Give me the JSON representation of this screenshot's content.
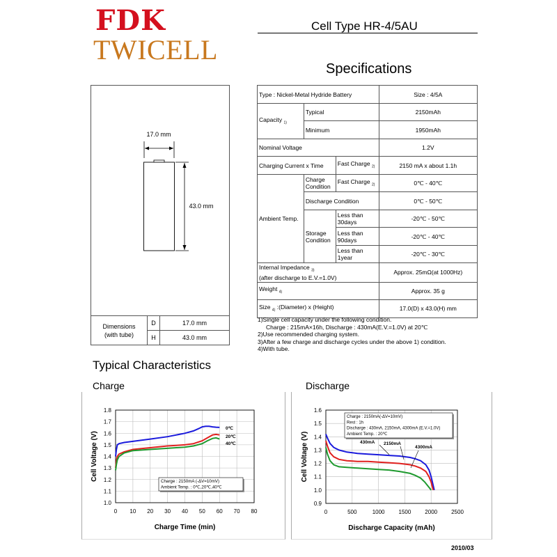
{
  "header": {
    "brand_top": "FDK",
    "brand_bottom": "TWICELL",
    "cell_type": "Cell Type HR-4/5AU",
    "spec_title": "Specifications"
  },
  "dimensions": {
    "width_label": "17.0 mm",
    "height_label": "43.0 mm",
    "table_label_line1": "Dimensions",
    "table_label_line2": "(with tube)",
    "rows": [
      {
        "key": "D",
        "value": "17.0 mm"
      },
      {
        "key": "H",
        "value": "43.0 mm"
      }
    ]
  },
  "spec": {
    "type": "Type : Nickel-Metal Hydride Battery",
    "size": "Size : 4/5A",
    "capacity": "Capacity",
    "capacity_note": "1)",
    "typical": "Typical",
    "typical_value": "2150mAh",
    "minimum": "Minimum",
    "minimum_value": "1950mAh",
    "nominal_voltage": "Nominal Voltage",
    "nominal_voltage_value": "1.2V",
    "charging": "Charging Current x Time",
    "fast_charge": "Fast Charge",
    "fast_charge_note": "2)",
    "charging_value": "2150 mA x about 1.1h",
    "ambient": "Ambient Temp.",
    "charge_condition_l1": "Charge",
    "charge_condition_l2": "Condition",
    "charge_temp": "0℃ - 40℃",
    "discharge_condition": "Discharge Condition",
    "discharge_temp": "0℃ - 50℃",
    "storage_l1": "Storage",
    "storage_l2": "Condition",
    "storage": [
      {
        "l1": "Less than",
        "l2": "30days",
        "value": "-20℃ - 50℃"
      },
      {
        "l1": "Less than",
        "l2": "90days",
        "value": "-20℃ - 40℃"
      },
      {
        "l1": "Less than",
        "l2": "1year",
        "value": "-20℃ - 30℃"
      }
    ],
    "impedance_l1": "Internal Impedance",
    "impedance_note": "3)",
    "impedance_l2": "(after discharge to E.V.=1.0V)",
    "impedance_value": "Approx. 25mΩ(at 1000Hz)",
    "weight": "Weight",
    "weight_note": "4)",
    "weight_value": "Approx. 35 g",
    "size_label": "Size",
    "size_note": "4)",
    "size_desc": ":(Diameter) x (Height)",
    "size_value": "17.0(D) x 43.0(H) mm"
  },
  "notes": [
    "1)Single cell capacity under the following condition.",
    "Charge : 215mA×16h,    Discharge : 430mA(E.V.=1.0V) at 20℃",
    "2)Use recommended charging system.",
    "3)After a few charge and discharge cycles under the above 1) condition.",
    "4)With tube."
  ],
  "typical_title": "Typical Characteristics",
  "charge_title": "Charge",
  "discharge_title": "Discharge",
  "date": "2010/03",
  "colors": {
    "blue": "#1a1adc",
    "red": "#e0201e",
    "green": "#1e9a2e",
    "fdk_red": "#d4101e",
    "twicell_orange": "#c8781e"
  },
  "chart_data": [
    {
      "type": "line",
      "ylabel": "Cell Voltage (V)",
      "xlabel": "Charge Time (min)",
      "xlim": [
        0,
        80
      ],
      "ylim": [
        1.0,
        1.8
      ],
      "xticks": [
        "0",
        "10",
        "20",
        "30",
        "40",
        "50",
        "60",
        "70",
        "80"
      ],
      "yticks": [
        "1.0",
        "1.1",
        "1.2",
        "1.3",
        "1.4",
        "1.5",
        "1.6",
        "1.7",
        "1.8"
      ],
      "legend_lines": [
        "Charge : 2150mA (-ΔV=10mV)",
        "Ambient Temp. : 0℃,20℃,40℃"
      ],
      "series": [
        {
          "name": "0℃",
          "color": "#1a1adc",
          "x": [
            0,
            0.5,
            1,
            2,
            5,
            10,
            20,
            30,
            40,
            45,
            48,
            50,
            52,
            54,
            56,
            58,
            60
          ],
          "y": [
            1.4,
            1.46,
            1.5,
            1.51,
            1.52,
            1.53,
            1.55,
            1.57,
            1.6,
            1.62,
            1.64,
            1.655,
            1.66,
            1.66,
            1.655,
            1.652,
            1.65
          ]
        },
        {
          "name": "20℃",
          "color": "#e0201e",
          "x": [
            0,
            0.5,
            1,
            2,
            5,
            10,
            20,
            30,
            40,
            45,
            50,
            53,
            56,
            58,
            60
          ],
          "y": [
            1.3,
            1.36,
            1.4,
            1.42,
            1.44,
            1.46,
            1.475,
            1.49,
            1.5,
            1.51,
            1.535,
            1.56,
            1.585,
            1.59,
            1.585
          ]
        },
        {
          "name": "40℃",
          "color": "#1e9a2e",
          "x": [
            0,
            0.5,
            1,
            2,
            5,
            10,
            20,
            30,
            40,
            45,
            50,
            53,
            56,
            58,
            60
          ],
          "y": [
            1.28,
            1.33,
            1.37,
            1.4,
            1.43,
            1.45,
            1.46,
            1.47,
            1.48,
            1.49,
            1.51,
            1.535,
            1.555,
            1.56,
            1.55
          ]
        }
      ]
    },
    {
      "type": "line",
      "ylabel": "Cell Voltage (V)",
      "xlabel": "Discharge Capacity (mAh)",
      "xlim": [
        0,
        2500
      ],
      "ylim": [
        0.9,
        1.6
      ],
      "xticks": [
        "0",
        "500",
        "1000",
        "1500",
        "2000",
        "2500"
      ],
      "yticks": [
        "0.9",
        "1.0",
        "1.1",
        "1.2",
        "1.3",
        "1.4",
        "1.5",
        "1.6"
      ],
      "legend_lines": [
        "Charge : 2150mA(-ΔV=10mV)",
        "Rest : 1h",
        "Discharge : 430mA, 2150mA, 4300mA (E.V.=1.0V)",
        "Ambient Temp. : 20℃"
      ],
      "series": [
        {
          "name": "430mA",
          "color": "#1a1adc",
          "x": [
            0,
            30,
            80,
            150,
            250,
            400,
            600,
            800,
            1000,
            1200,
            1400,
            1600,
            1700,
            1800,
            1900,
            1960,
            2000,
            2030,
            2060
          ],
          "y": [
            1.42,
            1.39,
            1.35,
            1.32,
            1.3,
            1.285,
            1.275,
            1.27,
            1.265,
            1.26,
            1.255,
            1.245,
            1.235,
            1.22,
            1.19,
            1.15,
            1.1,
            1.05,
            1.0
          ]
        },
        {
          "name": "2150mA",
          "color": "#e0201e",
          "x": [
            0,
            30,
            80,
            150,
            250,
            400,
            600,
            800,
            1000,
            1200,
            1400,
            1600,
            1700,
            1800,
            1900,
            1960,
            2000,
            2020,
            2040
          ],
          "y": [
            1.37,
            1.33,
            1.28,
            1.25,
            1.23,
            1.22,
            1.215,
            1.215,
            1.21,
            1.205,
            1.2,
            1.19,
            1.18,
            1.165,
            1.14,
            1.1,
            1.06,
            1.03,
            1.0
          ]
        },
        {
          "name": "4300mA",
          "color": "#1e9a2e",
          "x": [
            0,
            30,
            80,
            150,
            250,
            400,
            600,
            800,
            1000,
            1200,
            1400,
            1600,
            1700,
            1800,
            1880,
            1940,
            1980,
            2000
          ],
          "y": [
            1.32,
            1.27,
            1.22,
            1.19,
            1.175,
            1.17,
            1.165,
            1.16,
            1.155,
            1.15,
            1.14,
            1.125,
            1.11,
            1.09,
            1.06,
            1.03,
            1.01,
            1.0
          ]
        }
      ]
    }
  ]
}
